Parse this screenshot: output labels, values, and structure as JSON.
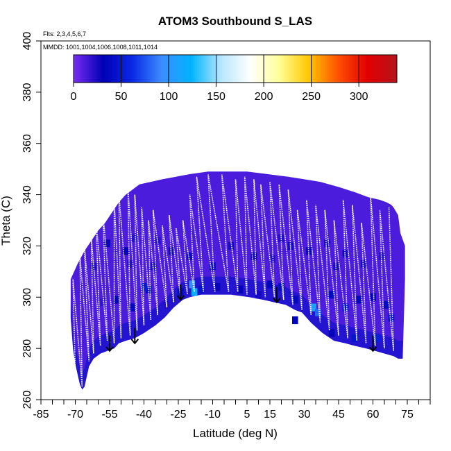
{
  "chart_data": {
    "type": "heatmap",
    "title": "ATOM3 Southbound S_LAS",
    "flights_note": "Flts: 2,3,4,5,6,7",
    "dates_note": "MMDD: 1001,1004,1006,1008,1011,1014",
    "xlabel": "Latitude (deg N)",
    "ylabel": "Theta (C)",
    "xlim": [
      -85,
      85
    ],
    "ylim": [
      260,
      400
    ],
    "x_tick_labels": [
      "-85",
      "-70",
      "-55",
      "-40",
      "-25",
      "-10",
      "5",
      "15",
      "30",
      "45",
      "60",
      "75"
    ],
    "x_tick_values": [
      -85,
      -70,
      -55,
      -40,
      -25,
      -10,
      5,
      15,
      30,
      45,
      60,
      75
    ],
    "x_minor_step": 5,
    "y_ticks": [
      260,
      280,
      300,
      320,
      340,
      360,
      380,
      400
    ],
    "colorbar": {
      "min": 0,
      "max": 340,
      "ticks": [
        0,
        50,
        100,
        150,
        200,
        250,
        300
      ],
      "colors": [
        "#7a2df5",
        "#0000b4",
        "#0a28e6",
        "#3c8cff",
        "#00b4ff",
        "#b4e6ff",
        "#ffffff",
        "#ffff96",
        "#ffc800",
        "#ff5000",
        "#e10000",
        "#b4141e"
      ]
    },
    "data_boundary": {
      "upper": [
        [
          -72,
          307
        ],
        [
          -69,
          313
        ],
        [
          -66,
          318
        ],
        [
          -63,
          322
        ],
        [
          -60,
          326
        ],
        [
          -57,
          329
        ],
        [
          -54,
          333
        ],
        [
          -51,
          337
        ],
        [
          -48,
          340
        ],
        [
          -45,
          342
        ],
        [
          -42,
          344
        ],
        [
          -37,
          345
        ],
        [
          -32,
          346
        ],
        [
          -26,
          347
        ],
        [
          -20,
          348
        ],
        [
          -12,
          349
        ],
        [
          -4,
          349
        ],
        [
          5,
          349
        ],
        [
          14,
          348
        ],
        [
          23,
          347
        ],
        [
          30,
          346
        ],
        [
          37,
          345
        ],
        [
          45,
          343
        ],
        [
          52,
          341
        ],
        [
          58,
          339
        ],
        [
          63,
          338
        ],
        [
          66,
          337
        ],
        [
          68,
          336
        ],
        [
          69,
          335
        ],
        [
          71,
          332
        ],
        [
          72,
          325
        ],
        [
          74,
          320
        ],
        [
          74,
          307
        ]
      ],
      "lower": [
        [
          -72,
          292
        ],
        [
          -71,
          280
        ],
        [
          -70,
          274
        ],
        [
          -69,
          270
        ],
        [
          -68,
          266
        ],
        [
          -67,
          264
        ],
        [
          -66,
          265
        ],
        [
          -65,
          269
        ],
        [
          -64,
          273
        ],
        [
          -62,
          276
        ],
        [
          -59,
          278
        ],
        [
          -56,
          279
        ],
        [
          -53,
          280
        ],
        [
          -51,
          282
        ],
        [
          -48,
          283
        ],
        [
          -44,
          284
        ],
        [
          -40,
          286
        ],
        [
          -35,
          289
        ],
        [
          -31,
          292
        ],
        [
          -27,
          296
        ],
        [
          -23,
          299
        ],
        [
          -20,
          300
        ],
        [
          -15,
          301
        ],
        [
          -10,
          301
        ],
        [
          -2,
          301
        ],
        [
          6,
          300
        ],
        [
          12,
          299
        ],
        [
          17,
          298
        ],
        [
          22,
          297
        ],
        [
          26,
          295
        ],
        [
          29,
          294
        ],
        [
          33,
          290
        ],
        [
          38,
          286
        ],
        [
          43,
          283
        ],
        [
          48,
          282
        ],
        [
          52,
          281
        ],
        [
          57,
          280
        ],
        [
          61,
          279
        ],
        [
          65,
          278
        ],
        [
          69,
          277
        ],
        [
          71,
          276
        ],
        [
          73,
          276
        ]
      ]
    },
    "cell_values": [
      [
        -58,
        298,
        18
      ],
      [
        -52,
        299,
        32
      ],
      [
        -45,
        296,
        35
      ],
      [
        -38,
        303,
        40
      ],
      [
        -30,
        297,
        22
      ],
      [
        -24,
        302,
        38
      ],
      [
        -19,
        305,
        95
      ],
      [
        -18,
        302,
        120
      ],
      [
        -15,
        303,
        45
      ],
      [
        -8,
        304,
        28
      ],
      [
        2,
        303,
        30
      ],
      [
        10,
        301,
        25
      ],
      [
        15,
        305,
        35
      ],
      [
        20,
        304,
        42
      ],
      [
        26,
        299,
        38
      ],
      [
        34,
        296,
        110
      ],
      [
        36,
        294,
        80
      ],
      [
        42,
        301,
        40
      ],
      [
        48,
        296,
        45
      ],
      [
        54,
        299,
        36
      ],
      [
        60,
        300,
        30
      ],
      [
        66,
        297,
        40
      ],
      [
        68,
        292,
        42
      ],
      [
        62,
        284,
        55
      ],
      [
        52,
        284,
        48
      ],
      [
        42,
        286,
        30
      ],
      [
        26,
        291,
        35
      ],
      [
        -40,
        304,
        50
      ],
      [
        -46,
        313,
        22
      ],
      [
        -36,
        312,
        24
      ],
      [
        -28,
        318,
        25
      ],
      [
        -20,
        316,
        28
      ],
      [
        -10,
        312,
        30
      ],
      [
        -2,
        320,
        24
      ],
      [
        8,
        316,
        27
      ],
      [
        16,
        315,
        22
      ],
      [
        24,
        320,
        24
      ],
      [
        32,
        318,
        27
      ],
      [
        40,
        321,
        26
      ],
      [
        48,
        317,
        26
      ],
      [
        56,
        313,
        24
      ],
      [
        64,
        316,
        22
      ],
      [
        -56,
        321,
        28
      ],
      [
        -48,
        318,
        30
      ],
      [
        -62,
        312,
        22
      ],
      [
        -44,
        323,
        22
      ],
      [
        -34,
        322,
        20
      ],
      [
        20,
        323,
        22
      ],
      [
        44,
        312,
        25
      ]
    ],
    "track_peaks": [
      [
        -71,
        307
      ],
      [
        -68,
        316
      ],
      [
        -66,
        320
      ],
      [
        -63,
        323
      ],
      [
        -61,
        330
      ],
      [
        -58,
        334
      ],
      [
        -53,
        338
      ],
      [
        -51,
        341
      ],
      [
        -47,
        343
      ],
      [
        -44,
        340
      ],
      [
        -41,
        335
      ],
      [
        -38,
        330
      ],
      [
        -36,
        334
      ],
      [
        -32,
        328
      ],
      [
        -29,
        332
      ],
      [
        -26,
        327
      ],
      [
        -23,
        330
      ],
      [
        -20,
        340
      ],
      [
        -17,
        347
      ],
      [
        -12,
        348
      ],
      [
        -6,
        348
      ],
      [
        0,
        346
      ],
      [
        4,
        347
      ],
      [
        8,
        346
      ],
      [
        11,
        344
      ],
      [
        15,
        345
      ],
      [
        19,
        344
      ],
      [
        23,
        342
      ],
      [
        27,
        334
      ],
      [
        31,
        338
      ],
      [
        35,
        336
      ],
      [
        39,
        334
      ],
      [
        43,
        330
      ],
      [
        47,
        338
      ],
      [
        51,
        336
      ],
      [
        55,
        329
      ],
      [
        59,
        339
      ],
      [
        63,
        334
      ],
      [
        67,
        335
      ],
      [
        70,
        331
      ]
    ],
    "track_troughs": [
      [
        -70,
        270
      ],
      [
        -67,
        265
      ],
      [
        -64,
        275
      ],
      [
        -62,
        278
      ],
      [
        -59,
        281
      ],
      [
        -56,
        283
      ],
      [
        -53,
        282
      ],
      [
        -50,
        284
      ],
      [
        -46,
        285
      ],
      [
        -43,
        287
      ],
      [
        -40,
        289
      ],
      [
        -37,
        291
      ],
      [
        -34,
        293
      ],
      [
        -30,
        296
      ],
      [
        -27,
        298
      ],
      [
        -24,
        300
      ],
      [
        -21,
        301
      ],
      [
        -18,
        302
      ],
      [
        -14,
        302
      ],
      [
        -9,
        302
      ],
      [
        -3,
        302
      ],
      [
        1,
        302
      ],
      [
        5,
        301
      ],
      [
        9,
        301
      ],
      [
        13,
        300
      ],
      [
        17,
        300
      ],
      [
        21,
        299
      ],
      [
        25,
        297
      ],
      [
        29,
        295
      ],
      [
        33,
        293
      ],
      [
        37,
        290
      ],
      [
        41,
        287
      ],
      [
        45,
        285
      ],
      [
        49,
        284
      ],
      [
        53,
        283
      ],
      [
        57,
        282
      ],
      [
        61,
        281
      ],
      [
        65,
        280
      ],
      [
        69,
        279
      ]
    ],
    "arrow_markers": [
      [
        -55,
        285
      ],
      [
        -44,
        288
      ],
      [
        -24,
        305
      ],
      [
        18,
        304
      ],
      [
        60,
        285
      ]
    ]
  }
}
